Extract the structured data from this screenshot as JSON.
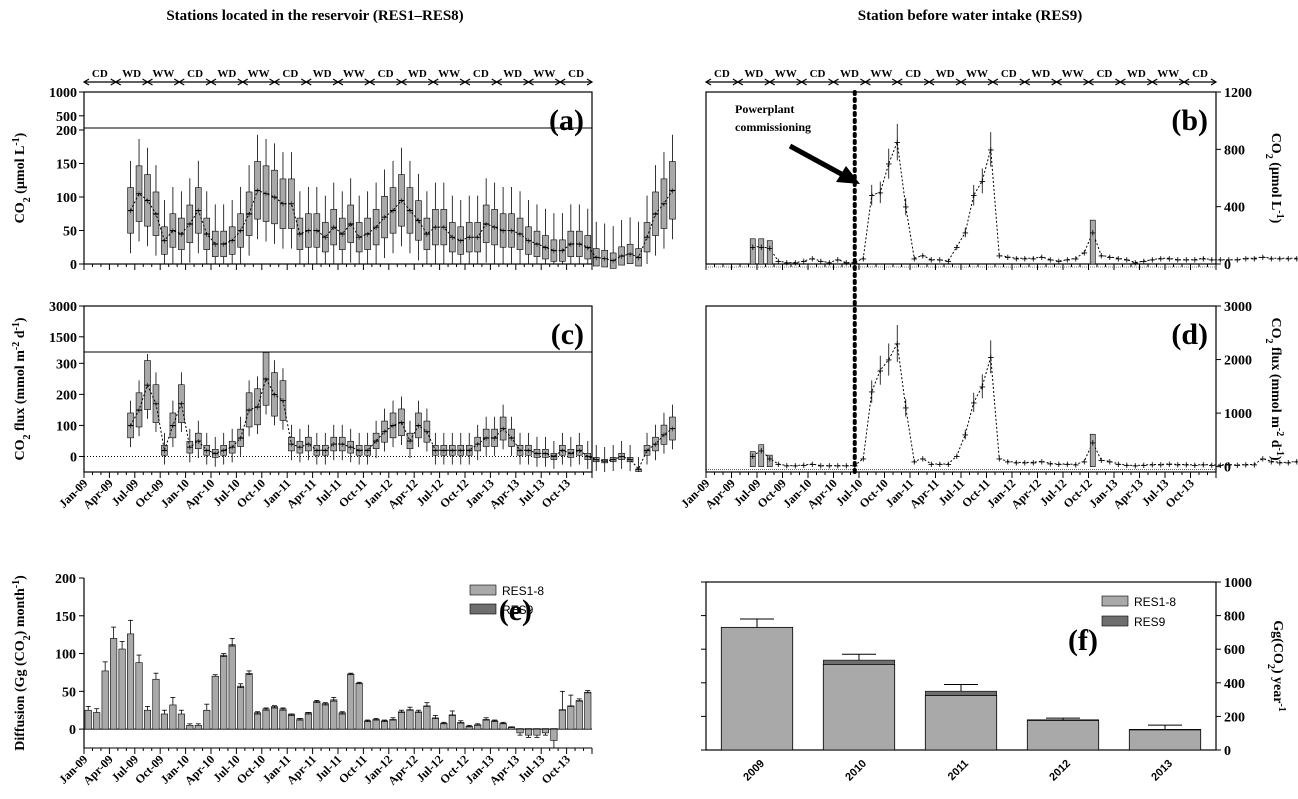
{
  "headers": {
    "left": "Stations located in the reservoir (RES1–RES8)",
    "right": "Station before water intake (RES9)"
  },
  "season_labels": [
    "CD",
    "WD",
    "WW",
    "CD",
    "WD",
    "WW",
    "CD",
    "WD",
    "WW",
    "CD",
    "WD",
    "WW",
    "CD",
    "WD",
    "WW",
    "CD"
  ],
  "month_ticks": [
    "Jan-09",
    "Apr-09",
    "Jul-09",
    "Oct-09",
    "Jan-10",
    "Apr-10",
    "Jul-10",
    "Oct-10",
    "Jan-11",
    "Apr-11",
    "Jul-11",
    "Oct-11",
    "Jan-12",
    "Apr-12",
    "Jul-12",
    "Oct-12",
    "Jan-13",
    "Apr-13",
    "Jul-13",
    "Oct-13"
  ],
  "annotation": {
    "line1": "Powerplant",
    "line2": "commissioning"
  },
  "chart_data": [
    {
      "id": "a",
      "type": "box",
      "panel_label": "(a)",
      "ylabel_parts": [
        "CO",
        "2",
        " (µmol L",
        "-1",
        ")"
      ],
      "y_ticks_low": [
        "0",
        "50",
        "100",
        "150",
        "200"
      ],
      "y_ticks_high": [
        "500",
        "1000"
      ],
      "ylim": [
        0,
        200
      ],
      "y_break": [
        200,
        1000
      ],
      "x": "monthly Jan-09 to Dec-13",
      "medians": [
        null,
        null,
        null,
        null,
        null,
        80,
        105,
        95,
        75,
        35,
        50,
        45,
        60,
        80,
        45,
        30,
        30,
        35,
        50,
        75,
        110,
        105,
        100,
        90,
        90,
        45,
        50,
        50,
        40,
        55,
        45,
        60,
        40,
        45,
        55,
        70,
        80,
        95,
        80,
        65,
        45,
        55,
        55,
        40,
        35,
        40,
        40,
        60,
        55,
        50,
        50,
        45,
        35,
        30,
        25,
        20,
        20,
        30,
        30,
        25,
        10,
        8,
        5,
        12,
        15,
        10,
        40,
        75,
        90,
        110
      ]
    },
    {
      "id": "b",
      "type": "line",
      "panel_label": "(b)",
      "ylabel_parts": [
        "CO",
        "2",
        " (µmol L",
        "-1",
        ")"
      ],
      "y_ticks": [
        "0",
        "400",
        "800",
        "1200"
      ],
      "ylim": [
        0,
        1200
      ],
      "values": [
        null,
        null,
        null,
        null,
        null,
        120,
        120,
        110,
        20,
        10,
        10,
        20,
        40,
        20,
        10,
        30,
        10,
        10,
        40,
        480,
        500,
        700,
        850,
        400,
        40,
        60,
        30,
        30,
        20,
        120,
        220,
        480,
        580,
        800,
        60,
        50,
        40,
        40,
        40,
        50,
        30,
        20,
        30,
        40,
        80,
        220,
        60,
        50,
        40,
        30,
        10,
        20,
        30,
        40,
        40,
        30,
        30,
        30,
        40,
        30,
        30,
        30,
        30,
        40,
        40,
        50,
        40,
        40,
        40,
        40
      ]
    },
    {
      "id": "c",
      "type": "box",
      "panel_label": "(c)",
      "ylabel_parts": [
        "CO",
        "2",
        " flux (mmol m",
        "-2",
        " d",
        "-1",
        ")"
      ],
      "y_ticks_low": [
        "0",
        "100",
        "200",
        "300"
      ],
      "y_ticks_high": [
        "1500",
        "3000"
      ],
      "ylim": [
        -50,
        330
      ],
      "y_break": [
        330,
        3000
      ],
      "medians": [
        null,
        null,
        null,
        null,
        null,
        100,
        150,
        230,
        170,
        20,
        100,
        170,
        30,
        50,
        20,
        10,
        20,
        30,
        60,
        150,
        160,
        250,
        200,
        180,
        40,
        30,
        40,
        20,
        20,
        40,
        40,
        30,
        20,
        20,
        50,
        80,
        100,
        110,
        50,
        100,
        80,
        20,
        20,
        20,
        20,
        20,
        40,
        60,
        60,
        90,
        60,
        20,
        20,
        10,
        10,
        0,
        20,
        10,
        20,
        0,
        -10,
        -15,
        -10,
        0,
        -10,
        -40,
        20,
        40,
        70,
        90
      ]
    },
    {
      "id": "d",
      "type": "line",
      "panel_label": "(d)",
      "ylabel_parts": [
        "CO",
        "2",
        " flux (mmol m",
        "-2",
        " d",
        "-1",
        ")"
      ],
      "y_ticks": [
        "0",
        "1000",
        "2000",
        "3000"
      ],
      "ylim": [
        -100,
        3000
      ],
      "values": [
        null,
        null,
        null,
        null,
        null,
        200,
        300,
        150,
        50,
        20,
        20,
        30,
        50,
        20,
        20,
        20,
        20,
        20,
        150,
        1400,
        1800,
        2000,
        2300,
        1100,
        100,
        150,
        50,
        50,
        50,
        200,
        600,
        1200,
        1500,
        2050,
        150,
        100,
        80,
        80,
        80,
        100,
        60,
        50,
        50,
        40,
        100,
        450,
        120,
        100,
        50,
        30,
        20,
        30,
        40,
        40,
        50,
        40,
        40,
        30,
        40,
        30,
        30,
        40,
        30,
        40,
        40,
        150,
        100,
        80,
        80,
        100
      ]
    },
    {
      "id": "e",
      "type": "bar",
      "panel_label": "(e)",
      "ylabel_parts": [
        "Diffusion (Gg (CO",
        "2",
        ") month",
        "-1",
        ")"
      ],
      "y_ticks": [
        "0",
        "50",
        "100",
        "150",
        "200"
      ],
      "ylim": [
        -25,
        200
      ],
      "legend": [
        "RES1-8",
        "RES9"
      ],
      "res1_8": [
        25,
        22,
        77,
        120,
        106,
        126,
        88,
        25,
        66,
        20,
        32,
        20,
        5,
        5,
        25,
        70,
        96,
        110,
        55,
        72,
        20,
        25,
        28,
        25,
        18,
        12,
        20,
        35,
        32,
        37,
        20,
        72,
        60,
        10,
        12,
        10,
        12,
        22,
        25,
        22,
        30,
        14,
        7,
        18,
        8,
        3,
        5,
        12,
        10,
        7,
        2,
        -5,
        -8,
        -8,
        -5,
        -15,
        25,
        30,
        37,
        48
      ],
      "res9": [
        0,
        0,
        0,
        0,
        0,
        0,
        0,
        0,
        0,
        0,
        0,
        0,
        0,
        0,
        0,
        0,
        2,
        2,
        2,
        2,
        2,
        2,
        2,
        2,
        2,
        2,
        2,
        2,
        2,
        2,
        2,
        1,
        1,
        1,
        1,
        1,
        1,
        1,
        1,
        1,
        1,
        1,
        1,
        1,
        1,
        1,
        1,
        1,
        1,
        1,
        1,
        1,
        1,
        1,
        1,
        1,
        1,
        1,
        1,
        1
      ],
      "errors": [
        5,
        5,
        12,
        15,
        10,
        18,
        10,
        5,
        8,
        5,
        10,
        5,
        2,
        2,
        8,
        2,
        4,
        10,
        5,
        5,
        3,
        3,
        3,
        3,
        2,
        2,
        2,
        3,
        3,
        5,
        3,
        2,
        2,
        2,
        2,
        2,
        3,
        3,
        4,
        3,
        5,
        4,
        2,
        6,
        3,
        2,
        2,
        3,
        2,
        2,
        1,
        3,
        3,
        3,
        3,
        10,
        25,
        15,
        3,
        3
      ]
    },
    {
      "id": "f",
      "type": "bar",
      "panel_label": "(f)",
      "ylabel_parts": [
        "Gg(CO",
        "2",
        ") year",
        "-1"
      ],
      "y_ticks": [
        "0",
        "200",
        "400",
        "600",
        "800",
        "1000"
      ],
      "ylim": [
        0,
        1000
      ],
      "categories": [
        "2009",
        "2010",
        "2011",
        "2012",
        "2013"
      ],
      "legend": [
        "RES1-8",
        "RES9"
      ],
      "res1_8": [
        730,
        510,
        325,
        175,
        120
      ],
      "res9": [
        0,
        25,
        25,
        5,
        3
      ],
      "errors": [
        50,
        35,
        40,
        10,
        25
      ]
    }
  ]
}
